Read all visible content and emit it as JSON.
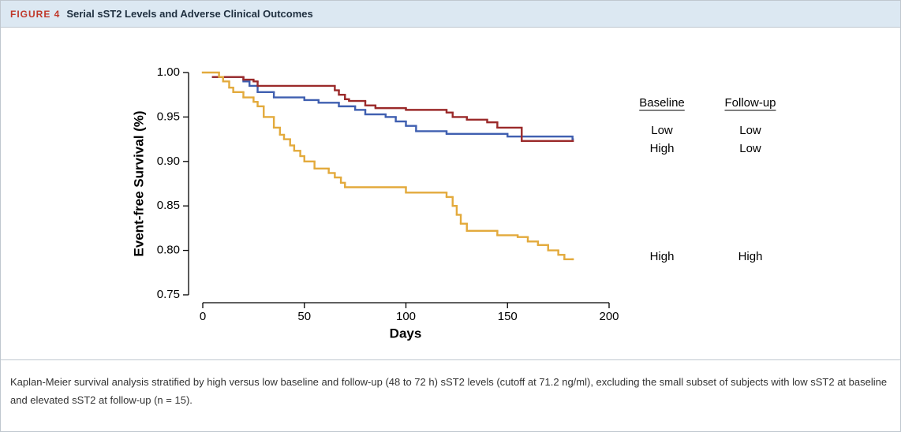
{
  "figure": {
    "label": "FIGURE 4",
    "title": "Serial sST2 Levels and Adverse Clinical Outcomes"
  },
  "chart_data": {
    "type": "step",
    "ylabel": "Event-free Survival (%)",
    "xlabel": "Days",
    "xlim": [
      0,
      200
    ],
    "xticks": [
      0,
      50,
      100,
      150,
      200
    ],
    "ylim": [
      0.75,
      1.0
    ],
    "yticks": [
      {
        "value": 0.75,
        "label": "0.75"
      },
      {
        "value": 0.8,
        "label": "0.80"
      },
      {
        "value": 0.85,
        "label": "0.85"
      },
      {
        "value": 0.9,
        "label": "0.90"
      },
      {
        "value": 0.95,
        "label": "0.95"
      },
      {
        "value": 1.0,
        "label": "1.00"
      }
    ],
    "legend_headers": [
      "Baseline",
      "Follow-up"
    ],
    "series": [
      {
        "baseline": "Low",
        "follow_up": "Low",
        "color": "#3f5fb0",
        "x": [
          5,
          20,
          23,
          27,
          35,
          50,
          57,
          67,
          75,
          80,
          90,
          95,
          100,
          105,
          120,
          150,
          182
        ],
        "values": [
          0.995,
          0.99,
          0.985,
          0.978,
          0.972,
          0.969,
          0.966,
          0.962,
          0.958,
          0.953,
          0.95,
          0.945,
          0.94,
          0.934,
          0.931,
          0.928,
          0.925
        ]
      },
      {
        "baseline": "High",
        "follow_up": "Low",
        "color": "#9b2a2a",
        "x": [
          5,
          20,
          25,
          27,
          65,
          67,
          70,
          72,
          80,
          85,
          100,
          120,
          123,
          130,
          140,
          145,
          157,
          182
        ],
        "values": [
          0.995,
          0.992,
          0.99,
          0.985,
          0.98,
          0.975,
          0.97,
          0.968,
          0.963,
          0.96,
          0.958,
          0.955,
          0.95,
          0.947,
          0.944,
          0.938,
          0.923,
          0.923
        ]
      },
      {
        "baseline": "High",
        "follow_up": "High",
        "color": "#e3aa3c",
        "x": [
          0,
          8,
          10,
          13,
          15,
          20,
          25,
          27,
          30,
          35,
          38,
          40,
          43,
          45,
          48,
          50,
          55,
          62,
          65,
          68,
          70,
          100,
          120,
          123,
          125,
          127,
          130,
          145,
          155,
          160,
          165,
          170,
          175,
          178,
          182
        ],
        "values": [
          1.0,
          0.995,
          0.99,
          0.983,
          0.978,
          0.972,
          0.967,
          0.962,
          0.95,
          0.938,
          0.93,
          0.925,
          0.918,
          0.912,
          0.906,
          0.9,
          0.892,
          0.887,
          0.882,
          0.876,
          0.871,
          0.865,
          0.86,
          0.85,
          0.84,
          0.83,
          0.822,
          0.817,
          0.815,
          0.81,
          0.806,
          0.8,
          0.795,
          0.79,
          0.79
        ]
      }
    ]
  },
  "caption": "Kaplan-Meier survival analysis stratified by high versus low baseline and follow-up (48 to 72 h) sST2 levels (cutoff at 71.2 ng/ml), excluding the small subset of subjects with low sST2 at baseline and elevated sST2 at follow-up (n = 15)."
}
